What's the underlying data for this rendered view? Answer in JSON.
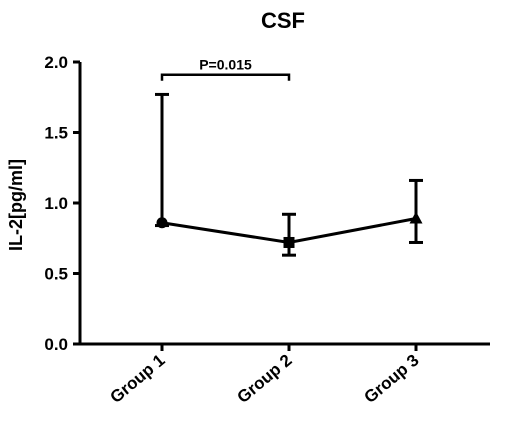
{
  "chart_data": {
    "type": "line",
    "title": "CSF",
    "xlabel": "",
    "ylabel": "IL-2[pg/ml]",
    "categories": [
      "Group 1",
      "Group 2",
      "Group 3"
    ],
    "ylim": [
      0.0,
      2.0
    ],
    "yticks": [
      "0.0",
      "0.5",
      "1.0",
      "1.5",
      "2.0"
    ],
    "grid": false,
    "series": [
      {
        "values": [
          0.86,
          0.72,
          0.89
        ],
        "error_low": [
          0.84,
          0.63,
          0.72
        ],
        "error_high": [
          1.77,
          0.92,
          1.16
        ],
        "markers": [
          "circle",
          "square",
          "triangle"
        ],
        "color": "#000000"
      }
    ],
    "annotations": [
      {
        "text": "P=0.015",
        "from_category": "Group 1",
        "to_category": "Group 2",
        "level": 1.91
      }
    ]
  }
}
